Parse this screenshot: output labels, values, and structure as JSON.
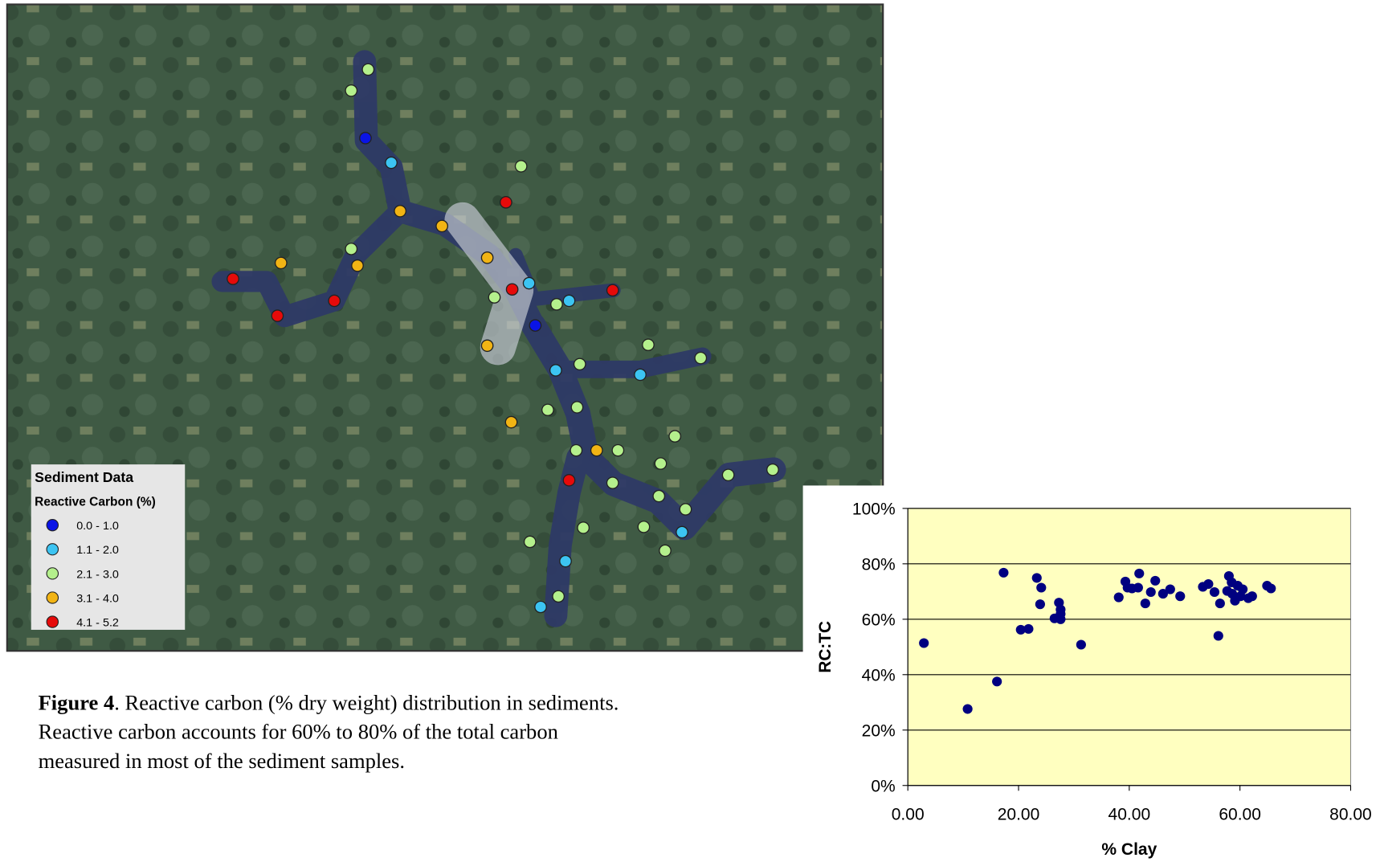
{
  "legend": {
    "title": "Sediment Data",
    "subtitle": "Reactive Carbon (%)",
    "items": [
      {
        "label": "0.0 - 1.0",
        "color": "#0a14e6"
      },
      {
        "label": "1.1 - 2.0",
        "color": "#3cc4f2"
      },
      {
        "label": "2.1 - 3.0",
        "color": "#b4f08c"
      },
      {
        "label": "3.1 - 4.0",
        "color": "#f2b414"
      },
      {
        "label": "4.1 - 5.2",
        "color": "#e60a0a"
      }
    ]
  },
  "caption": {
    "label": "Figure 4",
    "lines": [
      ".  Reactive carbon (% dry weight) distribution in sediments.",
      "Reactive carbon accounts for 60% to 80% of the total carbon",
      "measured in most of the sediment samples."
    ]
  },
  "chart_data": {
    "type": "scatter",
    "xlabel": "% Clay",
    "ylabel": "RC:TC",
    "color": "#000080",
    "grid": true,
    "background": "#ffffc0",
    "x": [
      2.9,
      10.8,
      16.1,
      17.3,
      20.4,
      21.8,
      23.3,
      24.1,
      23.9,
      26.5,
      27.3,
      27.6,
      27.6,
      27.6,
      31.3,
      38.1,
      39.3,
      39.7,
      40.5,
      41.8,
      41.6,
      42.9,
      43.9,
      44.7,
      46.1,
      47.4,
      49.2,
      53.3,
      54.3,
      55.4,
      56.1,
      56.4,
      57.7,
      58.0,
      58.5,
      58.6,
      59.1,
      59.6,
      60.1,
      60.5,
      61.5,
      62.2,
      64.9,
      65.6
    ],
    "values": [
      51.4,
      27.6,
      37.5,
      76.8,
      56.2,
      56.5,
      74.9,
      71.4,
      65.4,
      60.3,
      66,
      63.5,
      61.9,
      60,
      50.8,
      67.9,
      73.6,
      71.4,
      71.1,
      76.5,
      71.4,
      65.7,
      69.8,
      73.9,
      69.2,
      70.8,
      68.3,
      71.7,
      72.7,
      69.8,
      54,
      65.7,
      70.2,
      75.6,
      73.3,
      69.2,
      66.7,
      72.1,
      68.3,
      70.8,
      67.6,
      68.3,
      72.1,
      71.1
    ],
    "xlim": [
      0,
      80
    ],
    "ylim": [
      0,
      100
    ],
    "xticks": [
      {
        "value": 0,
        "label": "0.00"
      },
      {
        "value": 20,
        "label": "20.00"
      },
      {
        "value": 40,
        "label": "40.00"
      },
      {
        "value": 60,
        "label": "60.00"
      },
      {
        "value": 80,
        "label": "80.00"
      }
    ],
    "yticks": [
      {
        "value": 0,
        "label": "0%"
      },
      {
        "value": 20,
        "label": "20%"
      },
      {
        "value": 40,
        "label": "40%"
      },
      {
        "value": 60,
        "label": "60%"
      },
      {
        "value": 80,
        "label": "80%"
      },
      {
        "value": 100,
        "label": "100%"
      }
    ]
  }
}
